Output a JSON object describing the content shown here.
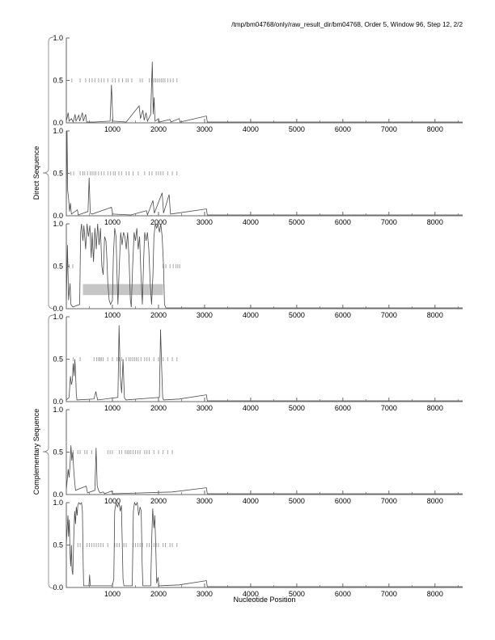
{
  "title": "/tmp/bm04768/only/raw_result_dir/bm04768, Order 5, Window 96, Step 12, 2/2",
  "group_labels": {
    "direct": "Direct Sequence",
    "complementary": "Complementary Sequence"
  },
  "colors": {
    "curve": "#4a4a4a",
    "axis": "#666666",
    "dash": "#a6a6a6",
    "bar": "#c6c6c6",
    "text": "#000000",
    "background": "#ffffff"
  },
  "chart_data": {
    "type": "line",
    "title": "/tmp/bm04768/only/raw_result_dir/bm04768, Order 5, Window 96, Step 12, 2/2",
    "xlabel": "Nucleotide Position",
    "ylabel": "",
    "xlim": [
      0,
      8600
    ],
    "ylim": [
      0,
      1
    ],
    "xticks": [
      1000,
      2000,
      3000,
      4000,
      5000,
      6000,
      7000,
      8000
    ],
    "minor_tick_step": 500,
    "yticks": [
      0.0,
      0.5,
      1.0
    ],
    "ytick_labels": [
      "0.0",
      "0.5",
      "1.0"
    ],
    "grid": false,
    "legend": "none",
    "panels": [
      {
        "name": "direct-frame-1",
        "group": "Direct Sequence",
        "bar": null,
        "orf_marks_y": 0.5,
        "orf_marks": [
          120,
          300,
          420,
          500,
          560,
          620,
          700,
          760,
          820,
          900,
          1000,
          1060,
          1140,
          1220,
          1300,
          1340,
          1420,
          1600,
          1650,
          1800,
          1850,
          1900,
          1940,
          1980,
          2020,
          2060,
          2100,
          2140,
          2200,
          2260,
          2320,
          2400
        ],
        "curve": [
          [
            0,
            0.02
          ],
          [
            40,
            0.12
          ],
          [
            60,
            0.02
          ],
          [
            110,
            0.05
          ],
          [
            150,
            0.01
          ],
          [
            190,
            0.1
          ],
          [
            210,
            0.02
          ],
          [
            270,
            0.09
          ],
          [
            290,
            0.02
          ],
          [
            350,
            0.12
          ],
          [
            370,
            0.02
          ],
          [
            420,
            0.1
          ],
          [
            440,
            0.01
          ],
          [
            600,
            0.01
          ],
          [
            950,
            0.02
          ],
          [
            980,
            0.45
          ],
          [
            1010,
            0.02
          ],
          [
            1300,
            0.01
          ],
          [
            1580,
            0.2
          ],
          [
            1610,
            0.05
          ],
          [
            1660,
            0.15
          ],
          [
            1690,
            0.03
          ],
          [
            1730,
            0.12
          ],
          [
            1760,
            0.02
          ],
          [
            1830,
            0.1
          ],
          [
            1865,
            0.72
          ],
          [
            1885,
            0.1
          ],
          [
            1905,
            0.3
          ],
          [
            1925,
            0.02
          ],
          [
            2000,
            0.05
          ],
          [
            2020,
            0.01
          ],
          [
            2250,
            0.04
          ],
          [
            2270,
            0.01
          ],
          [
            2450,
            0.05
          ],
          [
            2470,
            0.01
          ],
          [
            3040,
            0.08
          ],
          [
            3060,
            0.01
          ],
          [
            8600,
            0.01
          ]
        ]
      },
      {
        "name": "direct-frame-2",
        "group": "Direct Sequence",
        "bar": null,
        "orf_marks_y": 0.5,
        "orf_marks": [
          100,
          160,
          300,
          360,
          400,
          460,
          520,
          560,
          600,
          640,
          700,
          760,
          820,
          900,
          960,
          1020,
          1060,
          1140,
          1200,
          1300,
          1360,
          1450,
          1560,
          1700,
          1800,
          1860,
          1950,
          2000,
          2050,
          2100,
          2200,
          2300,
          2400
        ],
        "curve": [
          [
            0,
            0.05
          ],
          [
            15,
            1.0
          ],
          [
            30,
            0.3
          ],
          [
            50,
            0.2
          ],
          [
            70,
            0.05
          ],
          [
            90,
            0.15
          ],
          [
            110,
            0.02
          ],
          [
            240,
            0.07
          ],
          [
            260,
            0.01
          ],
          [
            470,
            0.05
          ],
          [
            495,
            0.45
          ],
          [
            520,
            0.03
          ],
          [
            560,
            0.02
          ],
          [
            980,
            0.1
          ],
          [
            1010,
            0.02
          ],
          [
            1400,
            0.01
          ],
          [
            1740,
            0.06
          ],
          [
            1760,
            0.01
          ],
          [
            1880,
            0.18
          ],
          [
            1910,
            0.03
          ],
          [
            2080,
            0.27
          ],
          [
            2110,
            0.03
          ],
          [
            2230,
            0.25
          ],
          [
            2260,
            0.02
          ],
          [
            2400,
            0.03
          ],
          [
            3040,
            0.08
          ],
          [
            3060,
            0.01
          ],
          [
            8600,
            0.01
          ]
        ]
      },
      {
        "name": "direct-frame-3",
        "group": "Direct Sequence",
        "bar": {
          "x0": 360,
          "x1": 2100,
          "y0": 0.16,
          "y1": 0.29
        },
        "orf_marks_y": 0.5,
        "orf_marks": [
          60,
          140,
          2100,
          2160,
          2250,
          2320,
          2380,
          2420,
          2460
        ],
        "curve": [
          [
            0,
            0.02
          ],
          [
            25,
            0.75
          ],
          [
            50,
            0.1
          ],
          [
            80,
            0.3
          ],
          [
            100,
            0.05
          ],
          [
            140,
            0.02
          ],
          [
            290,
            0.05
          ],
          [
            310,
            0.9
          ],
          [
            330,
            1.0
          ],
          [
            360,
            0.8
          ],
          [
            380,
            0.98
          ],
          [
            420,
            0.7
          ],
          [
            450,
            1.0
          ],
          [
            480,
            0.85
          ],
          [
            510,
            0.98
          ],
          [
            540,
            0.6
          ],
          [
            560,
            0.9
          ],
          [
            590,
            0.55
          ],
          [
            620,
            0.95
          ],
          [
            650,
            0.7
          ],
          [
            680,
            1.0
          ],
          [
            710,
            0.75
          ],
          [
            740,
            0.95
          ],
          [
            770,
            0.5
          ],
          [
            800,
            0.4
          ],
          [
            830,
            0.85
          ],
          [
            860,
            0.8
          ],
          [
            880,
            0.6
          ],
          [
            900,
            0.3
          ],
          [
            930,
            0.1
          ],
          [
            960,
            0.05
          ],
          [
            1000,
            0.1
          ],
          [
            1020,
            0.6
          ],
          [
            1050,
            0.95
          ],
          [
            1080,
            0.85
          ],
          [
            1100,
            0.4
          ],
          [
            1120,
            0.05
          ],
          [
            1150,
            0.5
          ],
          [
            1180,
            0.9
          ],
          [
            1210,
            0.75
          ],
          [
            1240,
            0.9
          ],
          [
            1270,
            0.85
          ],
          [
            1300,
            0.7
          ],
          [
            1330,
            0.9
          ],
          [
            1360,
            0.6
          ],
          [
            1390,
            0.1
          ],
          [
            1410,
            0.02
          ],
          [
            1440,
            0.5
          ],
          [
            1470,
            0.9
          ],
          [
            1500,
            0.8
          ],
          [
            1530,
            0.95
          ],
          [
            1560,
            0.7
          ],
          [
            1590,
            0.85
          ],
          [
            1620,
            0.4
          ],
          [
            1650,
            0.05
          ],
          [
            1680,
            0.6
          ],
          [
            1700,
            0.9
          ],
          [
            1730,
            0.8
          ],
          [
            1760,
            0.9
          ],
          [
            1790,
            0.7
          ],
          [
            1820,
            0.3
          ],
          [
            1850,
            0.05
          ],
          [
            1880,
            0.4
          ],
          [
            1900,
            0.85
          ],
          [
            1930,
            1.0
          ],
          [
            1960,
            0.95
          ],
          [
            1990,
            1.0
          ],
          [
            2020,
            0.9
          ],
          [
            2050,
            1.0
          ],
          [
            2080,
            0.85
          ],
          [
            2110,
            0.5
          ],
          [
            2130,
            0.05
          ],
          [
            2160,
            0.01
          ],
          [
            8600,
            0.01
          ]
        ]
      },
      {
        "name": "complementary-frame-1",
        "group": "Complementary Sequence",
        "bar": null,
        "orf_marks_y": 0.5,
        "orf_marks": [
          150,
          300,
          600,
          660,
          700,
          730,
          760,
          800,
          900,
          1000,
          1100,
          1150,
          1200,
          1300,
          1360,
          1400,
          1440,
          1480,
          1520,
          1560,
          1620,
          1700,
          1750,
          1800,
          1900,
          2000,
          2100,
          2200,
          2300,
          2400
        ],
        "curve": [
          [
            0,
            0.02
          ],
          [
            60,
            0.05
          ],
          [
            90,
            0.3
          ],
          [
            110,
            0.2
          ],
          [
            130,
            0.25
          ],
          [
            150,
            0.45
          ],
          [
            170,
            0.3
          ],
          [
            185,
            0.5
          ],
          [
            200,
            0.35
          ],
          [
            215,
            0.1
          ],
          [
            230,
            0.02
          ],
          [
            600,
            0.03
          ],
          [
            640,
            0.12
          ],
          [
            680,
            0.02
          ],
          [
            1120,
            0.05
          ],
          [
            1145,
            0.9
          ],
          [
            1170,
            0.3
          ],
          [
            1200,
            0.1
          ],
          [
            1230,
            0.5
          ],
          [
            1260,
            0.05
          ],
          [
            1290,
            0.02
          ],
          [
            2020,
            0.05
          ],
          [
            2045,
            0.85
          ],
          [
            2070,
            0.4
          ],
          [
            2090,
            0.05
          ],
          [
            2110,
            0.02
          ],
          [
            2450,
            0.03
          ],
          [
            3040,
            0.08
          ],
          [
            3060,
            0.01
          ],
          [
            8600,
            0.01
          ]
        ]
      },
      {
        "name": "complementary-frame-2",
        "group": "Complementary Sequence",
        "bar": null,
        "orf_marks_y": 0.5,
        "orf_marks": [
          100,
          150,
          250,
          300,
          400,
          450,
          550,
          900,
          950,
          1000,
          1150,
          1200,
          1280,
          1320,
          1360,
          1400,
          1450,
          1500,
          1550,
          1600,
          1700,
          1750,
          1800,
          1900,
          2000,
          2100,
          2200,
          2300
        ],
        "curve": [
          [
            0,
            0.05
          ],
          [
            40,
            0.3
          ],
          [
            60,
            0.2
          ],
          [
            80,
            0.35
          ],
          [
            100,
            0.58
          ],
          [
            120,
            0.4
          ],
          [
            140,
            0.5
          ],
          [
            160,
            0.3
          ],
          [
            180,
            0.15
          ],
          [
            200,
            0.05
          ],
          [
            430,
            0.1
          ],
          [
            460,
            0.02
          ],
          [
            620,
            0.05
          ],
          [
            645,
            0.55
          ],
          [
            670,
            0.1
          ],
          [
            700,
            0.05
          ],
          [
            730,
            0.02
          ],
          [
            800,
            0.03
          ],
          [
            830,
            0.01
          ],
          [
            980,
            0.04
          ],
          [
            1010,
            0.01
          ],
          [
            2300,
            0.03
          ],
          [
            3040,
            0.08
          ],
          [
            3060,
            0.01
          ],
          [
            8600,
            0.01
          ]
        ]
      },
      {
        "name": "complementary-frame-3",
        "group": "Complementary Sequence",
        "bar": null,
        "orf_marks_y": 0.5,
        "orf_marks": [
          250,
          300,
          450,
          500,
          550,
          600,
          650,
          700,
          750,
          800,
          900,
          1050,
          1100,
          1150,
          1250,
          1300,
          1450,
          1500,
          1550,
          1600,
          1650,
          1750,
          1800,
          1900,
          1950,
          2000,
          2100,
          2150,
          2250,
          2300,
          2400
        ],
        "curve": [
          [
            0,
            0.5
          ],
          [
            20,
            0.7
          ],
          [
            35,
            0.85
          ],
          [
            50,
            0.6
          ],
          [
            65,
            0.8
          ],
          [
            80,
            0.4
          ],
          [
            95,
            0.25
          ],
          [
            110,
            0.5
          ],
          [
            125,
            0.2
          ],
          [
            140,
            0.15
          ],
          [
            160,
            0.55
          ],
          [
            180,
            0.9
          ],
          [
            200,
            0.75
          ],
          [
            215,
            0.95
          ],
          [
            235,
            0.85
          ],
          [
            250,
            0.97
          ],
          [
            270,
            1.0
          ],
          [
            300,
            0.98
          ],
          [
            330,
            1.0
          ],
          [
            350,
            0.9
          ],
          [
            365,
            0.3
          ],
          [
            375,
            0.02
          ],
          [
            490,
            0.02
          ],
          [
            505,
            0.15
          ],
          [
            520,
            0.02
          ],
          [
            1000,
            0.02
          ],
          [
            1030,
            0.1
          ],
          [
            1050,
            0.9
          ],
          [
            1080,
            1.0
          ],
          [
            1110,
            0.95
          ],
          [
            1140,
            1.0
          ],
          [
            1170,
            0.9
          ],
          [
            1195,
            0.97
          ],
          [
            1215,
            0.5
          ],
          [
            1230,
            0.1
          ],
          [
            1250,
            0.02
          ],
          [
            1430,
            0.02
          ],
          [
            1455,
            0.9
          ],
          [
            1480,
            1.0
          ],
          [
            1510,
            0.97
          ],
          [
            1540,
            1.0
          ],
          [
            1570,
            0.85
          ],
          [
            1600,
            0.95
          ],
          [
            1625,
            0.9
          ],
          [
            1645,
            0.3
          ],
          [
            1660,
            0.02
          ],
          [
            1830,
            0.02
          ],
          [
            1855,
            0.6
          ],
          [
            1875,
            0.93
          ],
          [
            1900,
            0.7
          ],
          [
            1920,
            0.85
          ],
          [
            1945,
            0.4
          ],
          [
            1960,
            0.05
          ],
          [
            1990,
            0.12
          ],
          [
            2010,
            0.02
          ],
          [
            2450,
            0.03
          ],
          [
            3040,
            0.08
          ],
          [
            3060,
            0.01
          ],
          [
            8600,
            0.01
          ]
        ]
      }
    ]
  },
  "layout_labels": {
    "xlabel": "Nucleotide Position"
  }
}
